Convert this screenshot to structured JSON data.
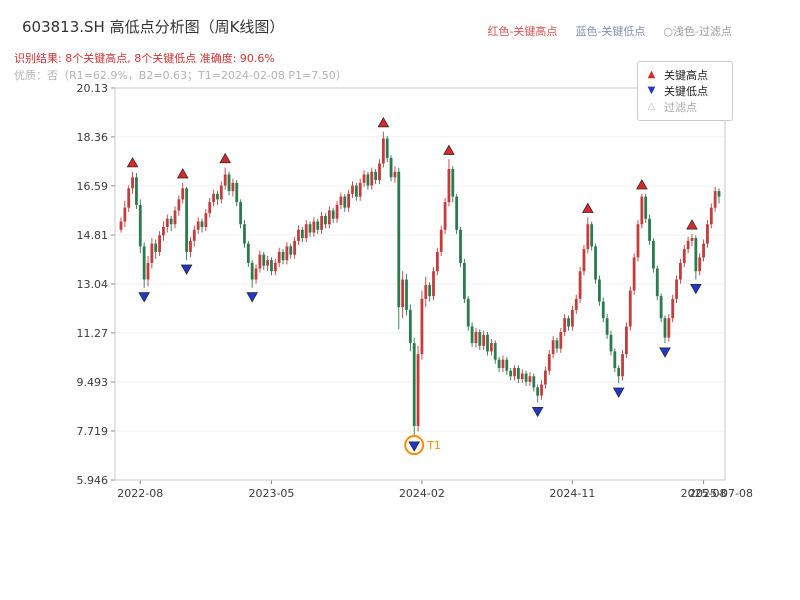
{
  "header": {
    "title": "603813.SH 高低点分析图（周K线图）",
    "legend_inline": [
      {
        "label": "红色-关键高点",
        "color": "#d9534f"
      },
      {
        "label": "蓝色-关键低点",
        "color": "#8090b8"
      },
      {
        "label": "○浅色-过滤点",
        "color": "#999999"
      }
    ],
    "result_line": "识别结果: 8个关键高点, 8个关键低点  准确度: 90.6%",
    "result_color": "#cc3333",
    "quality_line": "优质：否（R1=62.9%，B2=0.63；T1=2024-02-08 P1=7.50）",
    "quality_color": "#b3b3b3"
  },
  "legend_box": {
    "items": [
      {
        "label": "关键高点",
        "icon": "▲",
        "color": "#d42a2a",
        "text_color": "#222222"
      },
      {
        "label": "关键低点",
        "icon": "▼",
        "color": "#2238c8",
        "text_color": "#222222"
      },
      {
        "label": "过滤点",
        "icon": "△",
        "color": "#c0c0c0",
        "text_color": "#aaaaaa"
      }
    ]
  },
  "chart_data": {
    "type": "candlestick",
    "title": "603813.SH 高低点分析图（周K线图）",
    "xlabel": "",
    "ylabel": "",
    "ylim": [
      5.946,
      20.13
    ],
    "y_ticks": [
      "20.13",
      "18.36",
      "16.59",
      "14.81",
      "13.04",
      "11.27",
      "9.493",
      "7.719",
      "5.946"
    ],
    "x_ticks": [
      {
        "week": 5,
        "label": "2022-08"
      },
      {
        "week": 39,
        "label": "2023-05"
      },
      {
        "week": 78,
        "label": "2024-02"
      },
      {
        "week": 117,
        "label": "2024-11"
      },
      {
        "week": 151,
        "label": "2025-08"
      }
    ],
    "last_date_label": "2025-07-08",
    "grid": true,
    "legend_position": "top-right",
    "colors": {
      "up": "#c43c3c",
      "down": "#2b7b4e",
      "key_high": "#d42a2a",
      "key_low": "#2238c8",
      "t1": "#ff8c00"
    },
    "candles": [
      [
        15.0,
        15.45,
        14.9,
        15.3
      ],
      [
        15.3,
        16.05,
        15.1,
        15.8
      ],
      [
        15.8,
        16.6,
        15.65,
        16.5
      ],
      [
        16.5,
        17.1,
        16.3,
        16.9
      ],
      [
        16.9,
        17.05,
        15.75,
        15.9
      ],
      [
        15.9,
        16.1,
        14.15,
        14.4
      ],
      [
        14.4,
        14.55,
        12.9,
        13.2
      ],
      [
        13.2,
        14.05,
        12.95,
        13.8
      ],
      [
        13.8,
        14.7,
        13.6,
        14.5
      ],
      [
        14.5,
        14.65,
        13.95,
        14.2
      ],
      [
        14.2,
        14.95,
        14.05,
        14.8
      ],
      [
        14.8,
        15.3,
        14.6,
        15.1
      ],
      [
        15.1,
        15.55,
        14.9,
        15.4
      ],
      [
        15.4,
        15.5,
        14.95,
        15.2
      ],
      [
        15.2,
        15.85,
        15.05,
        15.7
      ],
      [
        15.7,
        16.25,
        15.5,
        16.1
      ],
      [
        16.1,
        16.7,
        15.95,
        16.5
      ],
      [
        16.5,
        16.55,
        13.9,
        14.2
      ],
      [
        14.2,
        14.75,
        14.0,
        14.6
      ],
      [
        14.6,
        15.15,
        14.4,
        15.0
      ],
      [
        15.0,
        15.45,
        14.85,
        15.3
      ],
      [
        15.3,
        15.4,
        14.9,
        15.1
      ],
      [
        15.1,
        15.75,
        14.95,
        15.6
      ],
      [
        15.6,
        16.15,
        15.45,
        16.0
      ],
      [
        16.0,
        16.45,
        15.85,
        16.3
      ],
      [
        16.3,
        16.4,
        15.9,
        16.1
      ],
      [
        16.1,
        16.75,
        15.95,
        16.6
      ],
      [
        16.6,
        17.25,
        16.45,
        17.0
      ],
      [
        17.0,
        17.1,
        16.25,
        16.4
      ],
      [
        16.4,
        16.85,
        16.2,
        16.7
      ],
      [
        16.7,
        16.8,
        15.85,
        16.0
      ],
      [
        16.0,
        16.1,
        15.05,
        15.2
      ],
      [
        15.2,
        15.35,
        14.35,
        14.5
      ],
      [
        14.5,
        14.6,
        13.65,
        13.8
      ],
      [
        13.8,
        13.9,
        12.9,
        13.2
      ],
      [
        13.2,
        13.75,
        13.05,
        13.6
      ],
      [
        13.6,
        14.25,
        13.45,
        14.1
      ],
      [
        14.1,
        14.2,
        13.55,
        13.7
      ],
      [
        13.7,
        14.05,
        13.5,
        13.9
      ],
      [
        13.9,
        14.0,
        13.35,
        13.5
      ],
      [
        13.5,
        13.95,
        13.35,
        13.8
      ],
      [
        13.8,
        14.35,
        13.65,
        14.2
      ],
      [
        14.2,
        14.3,
        13.75,
        13.9
      ],
      [
        13.9,
        14.55,
        13.75,
        14.4
      ],
      [
        14.4,
        14.5,
        13.95,
        14.1
      ],
      [
        14.1,
        14.75,
        13.95,
        14.6
      ],
      [
        14.6,
        15.15,
        14.45,
        15.0
      ],
      [
        15.0,
        15.1,
        14.55,
        14.7
      ],
      [
        14.7,
        15.35,
        14.55,
        15.2
      ],
      [
        15.2,
        15.3,
        14.75,
        14.9
      ],
      [
        14.9,
        15.45,
        14.75,
        15.3
      ],
      [
        15.3,
        15.4,
        14.85,
        15.0
      ],
      [
        15.0,
        15.65,
        14.85,
        15.5
      ],
      [
        15.5,
        15.6,
        15.05,
        15.2
      ],
      [
        15.2,
        15.85,
        15.05,
        15.7
      ],
      [
        15.7,
        15.8,
        15.25,
        15.4
      ],
      [
        15.4,
        16.05,
        15.25,
        15.9
      ],
      [
        15.9,
        16.35,
        15.75,
        16.2
      ],
      [
        16.2,
        16.3,
        15.65,
        15.8
      ],
      [
        15.8,
        16.45,
        15.65,
        16.3
      ],
      [
        16.3,
        16.75,
        16.15,
        16.6
      ],
      [
        16.6,
        16.7,
        16.05,
        16.2
      ],
      [
        16.2,
        16.85,
        16.05,
        16.7
      ],
      [
        16.7,
        17.15,
        16.55,
        17.0
      ],
      [
        17.0,
        17.1,
        16.45,
        16.6
      ],
      [
        16.6,
        17.25,
        16.45,
        17.1
      ],
      [
        17.1,
        17.2,
        16.65,
        16.8
      ],
      [
        16.8,
        17.55,
        16.65,
        17.4
      ],
      [
        17.4,
        18.55,
        17.25,
        18.3
      ],
      [
        18.3,
        18.4,
        17.45,
        17.6
      ],
      [
        17.6,
        17.7,
        16.75,
        16.9
      ],
      [
        16.9,
        17.3,
        16.7,
        17.1
      ],
      [
        17.1,
        17.25,
        11.4,
        12.2
      ],
      [
        12.2,
        13.5,
        11.8,
        13.2
      ],
      [
        13.2,
        13.4,
        11.9,
        12.1
      ],
      [
        12.1,
        12.3,
        10.6,
        10.9
      ],
      [
        10.9,
        11.1,
        7.5,
        7.9
      ],
      [
        7.9,
        10.8,
        7.7,
        10.5
      ],
      [
        10.5,
        12.8,
        10.3,
        12.5
      ],
      [
        12.5,
        13.3,
        12.2,
        13.0
      ],
      [
        13.0,
        13.1,
        12.4,
        12.6
      ],
      [
        12.6,
        13.65,
        12.45,
        13.5
      ],
      [
        13.5,
        14.35,
        13.35,
        14.2
      ],
      [
        14.2,
        15.15,
        14.05,
        15.0
      ],
      [
        15.0,
        16.15,
        14.85,
        16.0
      ],
      [
        16.0,
        17.55,
        15.85,
        17.2
      ],
      [
        17.2,
        17.3,
        16.0,
        16.2
      ],
      [
        16.2,
        16.3,
        14.85,
        15.0
      ],
      [
        15.0,
        15.1,
        13.65,
        13.8
      ],
      [
        13.8,
        13.95,
        12.35,
        12.5
      ],
      [
        12.5,
        12.6,
        11.35,
        11.5
      ],
      [
        11.5,
        11.65,
        10.75,
        10.9
      ],
      [
        10.9,
        11.45,
        10.75,
        11.3
      ],
      [
        11.3,
        11.4,
        10.65,
        10.8
      ],
      [
        10.8,
        11.35,
        10.65,
        11.2
      ],
      [
        11.2,
        11.3,
        10.45,
        10.6
      ],
      [
        10.6,
        11.05,
        10.45,
        10.9
      ],
      [
        10.9,
        11.0,
        10.15,
        10.3
      ],
      [
        10.3,
        10.4,
        9.85,
        10.0
      ],
      [
        10.0,
        10.45,
        9.85,
        10.3
      ],
      [
        10.3,
        10.4,
        9.75,
        9.9
      ],
      [
        9.9,
        10.0,
        9.55,
        9.7
      ],
      [
        9.7,
        10.1,
        9.55,
        10.0
      ],
      [
        10.0,
        10.1,
        9.45,
        9.6
      ],
      [
        9.6,
        9.95,
        9.45,
        9.8
      ],
      [
        9.8,
        9.9,
        9.35,
        9.5
      ],
      [
        9.5,
        9.85,
        9.35,
        9.7
      ],
      [
        9.7,
        9.8,
        9.15,
        9.3
      ],
      [
        9.3,
        9.4,
        8.75,
        9.0
      ],
      [
        9.0,
        9.55,
        8.85,
        9.4
      ],
      [
        9.4,
        10.05,
        9.25,
        9.9
      ],
      [
        9.9,
        10.65,
        9.75,
        10.5
      ],
      [
        10.5,
        11.15,
        10.35,
        11.0
      ],
      [
        11.0,
        11.1,
        10.55,
        10.7
      ],
      [
        10.7,
        11.45,
        10.55,
        11.3
      ],
      [
        11.3,
        11.95,
        11.15,
        11.8
      ],
      [
        11.8,
        11.9,
        11.35,
        11.5
      ],
      [
        11.5,
        12.25,
        11.35,
        12.1
      ],
      [
        12.1,
        12.65,
        11.95,
        12.5
      ],
      [
        12.5,
        13.65,
        12.35,
        13.5
      ],
      [
        13.5,
        14.45,
        13.35,
        14.3
      ],
      [
        14.3,
        15.45,
        14.15,
        15.2
      ],
      [
        15.2,
        15.3,
        14.25,
        14.4
      ],
      [
        14.4,
        14.5,
        13.05,
        13.2
      ],
      [
        13.2,
        13.35,
        12.25,
        12.4
      ],
      [
        12.4,
        12.55,
        11.65,
        11.8
      ],
      [
        11.8,
        11.95,
        11.05,
        11.2
      ],
      [
        11.2,
        11.35,
        10.45,
        10.6
      ],
      [
        10.6,
        10.7,
        9.85,
        10.0
      ],
      [
        10.0,
        10.1,
        9.45,
        9.7
      ],
      [
        9.7,
        10.65,
        9.55,
        10.5
      ],
      [
        10.5,
        11.65,
        10.35,
        11.5
      ],
      [
        11.5,
        12.95,
        11.35,
        12.8
      ],
      [
        12.8,
        14.15,
        12.65,
        14.0
      ],
      [
        14.0,
        15.35,
        13.85,
        15.2
      ],
      [
        15.2,
        16.3,
        15.05,
        16.2
      ],
      [
        16.2,
        16.3,
        15.25,
        15.4
      ],
      [
        15.4,
        15.55,
        14.45,
        14.6
      ],
      [
        14.6,
        14.7,
        13.45,
        13.6
      ],
      [
        13.6,
        13.7,
        12.45,
        12.6
      ],
      [
        12.6,
        12.7,
        11.65,
        11.8
      ],
      [
        11.8,
        11.9,
        10.9,
        11.1
      ],
      [
        11.1,
        11.95,
        10.95,
        11.8
      ],
      [
        11.8,
        12.65,
        11.65,
        12.5
      ],
      [
        12.5,
        13.35,
        12.35,
        13.2
      ],
      [
        13.2,
        13.95,
        13.05,
        13.8
      ],
      [
        13.8,
        14.45,
        13.65,
        14.3
      ],
      [
        14.3,
        14.75,
        14.15,
        14.6
      ],
      [
        14.6,
        14.85,
        14.4,
        14.7
      ],
      [
        14.7,
        14.8,
        13.2,
        13.5
      ],
      [
        13.5,
        14.15,
        13.35,
        14.0
      ],
      [
        14.0,
        14.65,
        13.85,
        14.5
      ],
      [
        14.5,
        15.35,
        14.35,
        15.2
      ],
      [
        15.2,
        15.95,
        15.05,
        15.8
      ],
      [
        15.8,
        16.55,
        15.65,
        16.4
      ],
      [
        16.4,
        16.5,
        15.95,
        16.2
      ]
    ],
    "key_highs": [
      3,
      16,
      27,
      68,
      85,
      121,
      135,
      148
    ],
    "key_lows": [
      6,
      17,
      34,
      76,
      108,
      129,
      141,
      149
    ],
    "t1": {
      "week": 76,
      "price": 7.5,
      "label": "T1",
      "date": "2024-02-08"
    }
  }
}
